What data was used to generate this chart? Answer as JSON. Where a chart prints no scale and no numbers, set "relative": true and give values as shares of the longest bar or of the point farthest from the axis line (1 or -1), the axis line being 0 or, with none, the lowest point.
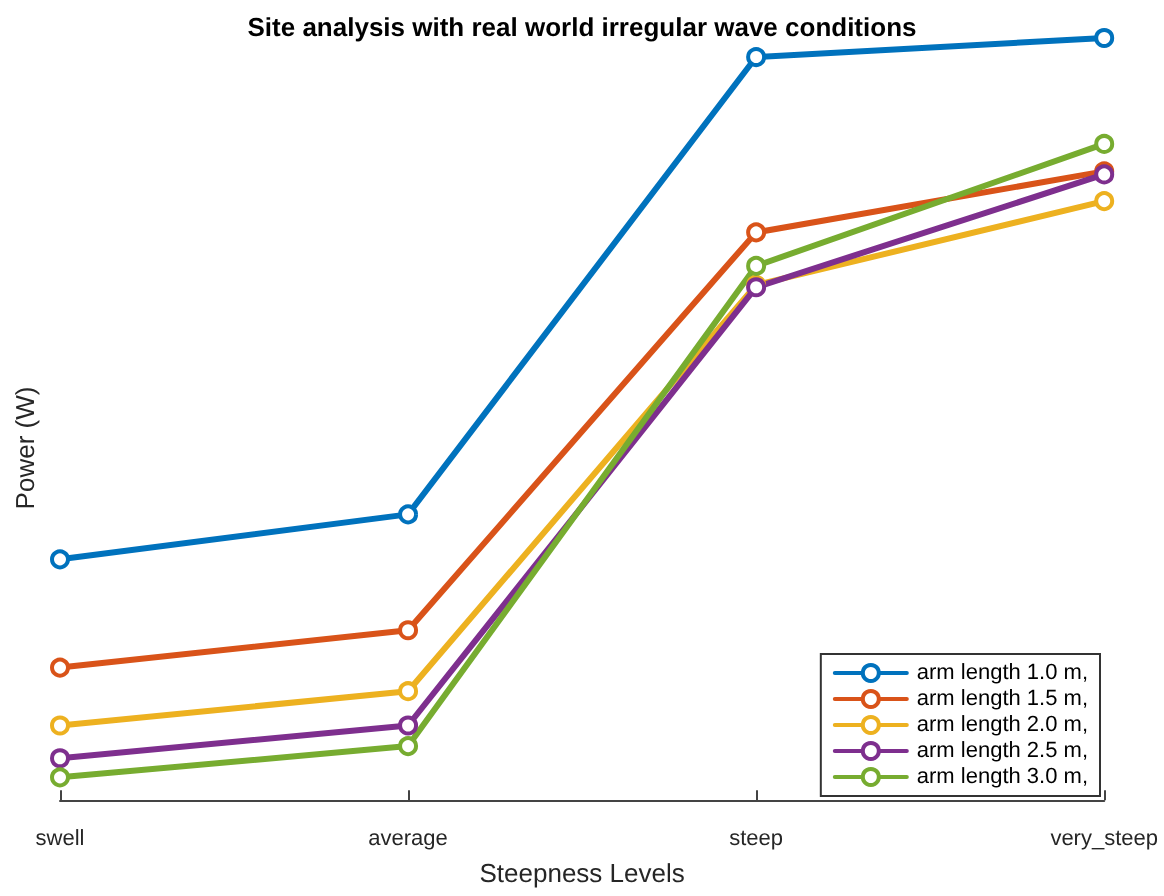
{
  "chart_data": {
    "type": "line",
    "title": "Site analysis with real world irregular wave conditions",
    "xlabel": "Steepness Levels",
    "ylabel": "Power (W)",
    "relative": true,
    "categories": [
      "swell",
      "average",
      "steep",
      "very_steep"
    ],
    "marker": "circle",
    "legend": "bottom right",
    "grid": false,
    "series": [
      {
        "name": "arm length 1.0 m,",
        "color": "#0072bd",
        "values": [
          0.316,
          0.375,
          0.975,
          1
        ]
      },
      {
        "name": "arm length 1.5 m,",
        "color": "#d95319",
        "values": [
          0.174,
          0.223,
          0.745,
          0.825
        ]
      },
      {
        "name": "arm length 2.0 m,",
        "color": "#edb120",
        "values": [
          0.098,
          0.143,
          0.676,
          0.786
        ]
      },
      {
        "name": "arm length 2.5 m,",
        "color": "#7e2f8e",
        "values": [
          0.055,
          0.098,
          0.673,
          0.821
        ]
      },
      {
        "name": "arm length 3.0 m,",
        "color": "#77ac30",
        "values": [
          0.03,
          0.071,
          0.701,
          0.861
        ]
      }
    ]
  }
}
